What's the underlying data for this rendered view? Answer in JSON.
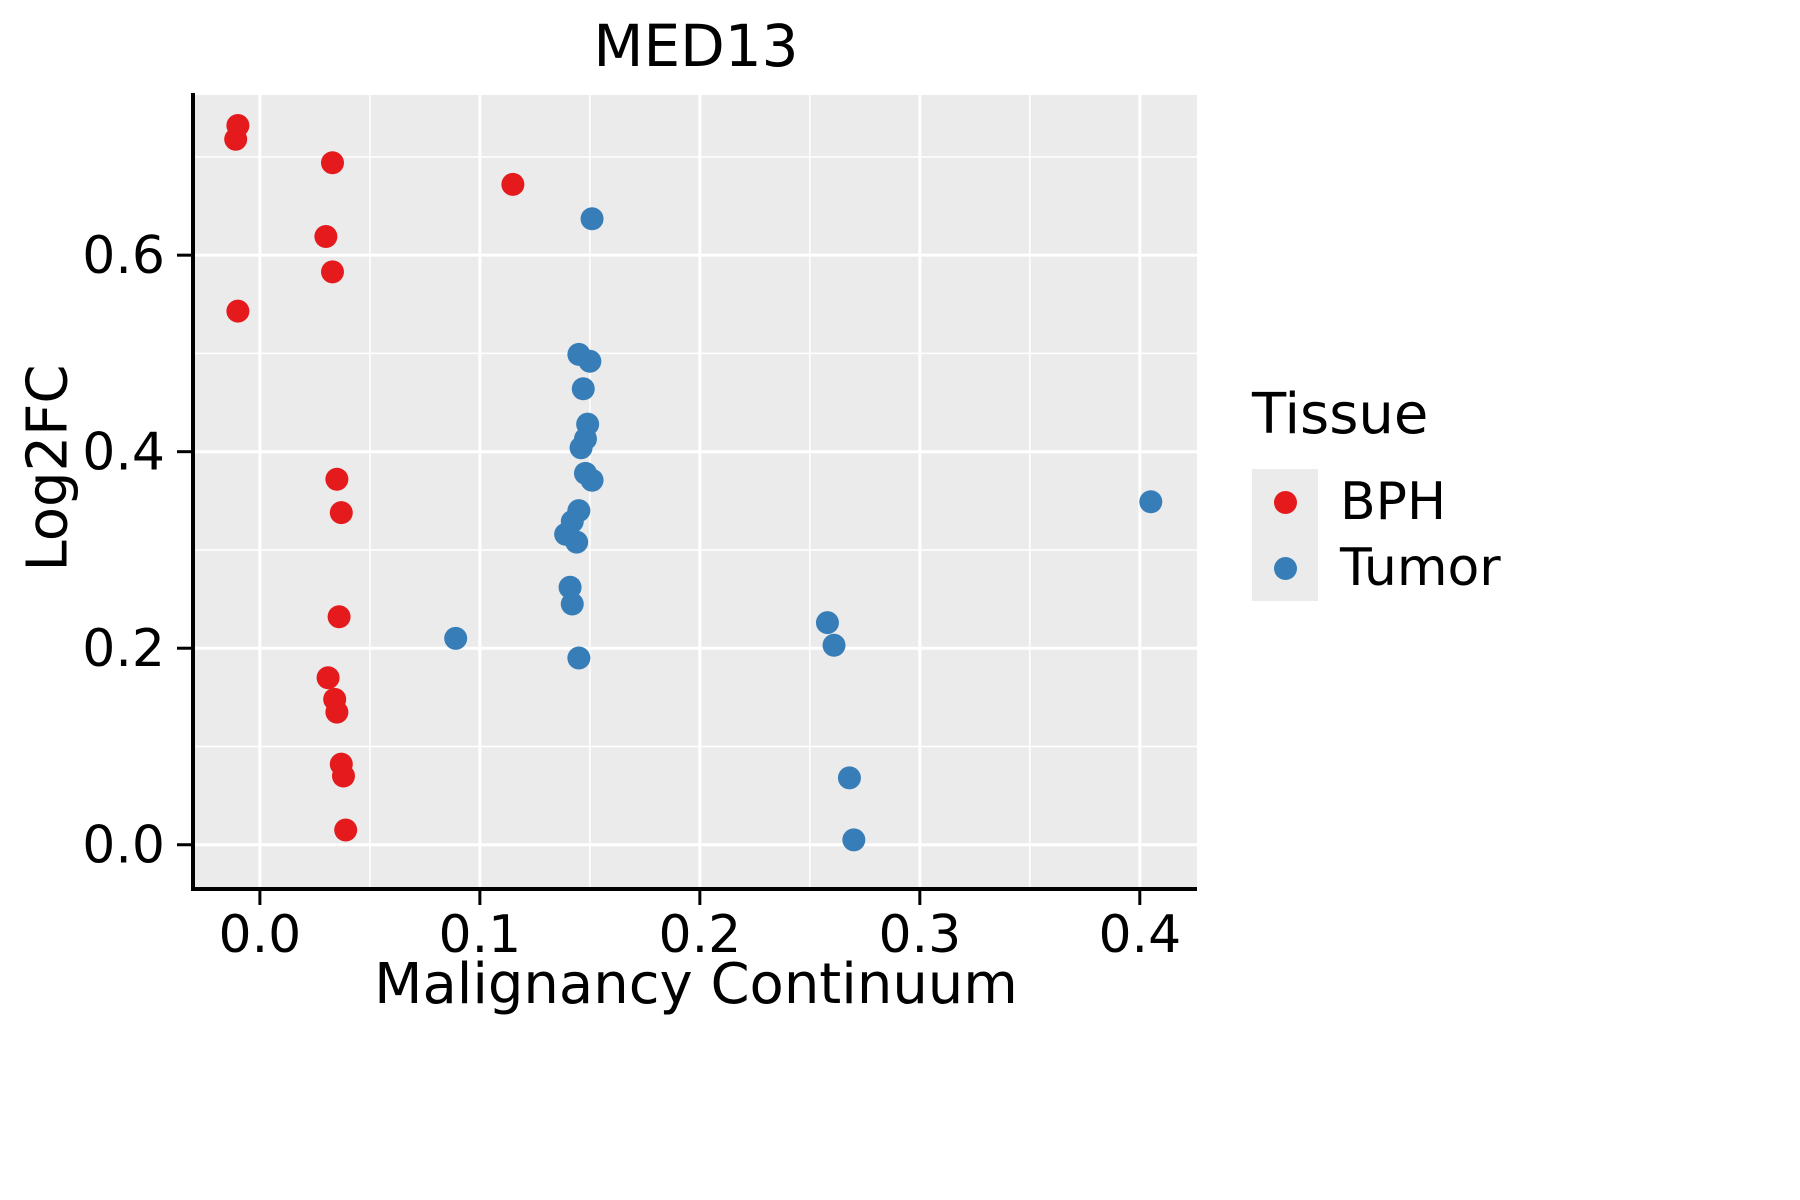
{
  "chart_data": {
    "type": "scatter",
    "title": "MED13",
    "xlabel": "Malignancy Continuum",
    "ylabel": "Log2FC",
    "legend_title": "Tissue",
    "legend_position": "right",
    "panel_background": "#EBEBEB",
    "grid_color": "#FFFFFF",
    "axis_color": "#000000",
    "grid": "on",
    "xlim": [
      -0.0295,
      0.426
    ],
    "ylim": [
      -0.043,
      0.763
    ],
    "x_ticks": {
      "values": [
        0.0,
        0.1,
        0.2,
        0.3,
        0.4
      ],
      "labels": [
        "0.0",
        "0.1",
        "0.2",
        "0.3",
        "0.4"
      ],
      "minor": [
        0.05,
        0.15,
        0.25,
        0.35
      ]
    },
    "y_ticks": {
      "values": [
        0.0,
        0.2,
        0.4,
        0.6
      ],
      "labels": [
        "0.0",
        "0.2",
        "0.4",
        "0.6"
      ],
      "minor": [
        0.1,
        0.3,
        0.5,
        0.7
      ]
    },
    "series": [
      {
        "name": "BPH",
        "color": "#E41A1C",
        "points": [
          [
            -0.01,
            0.732
          ],
          [
            -0.011,
            0.718
          ],
          [
            0.033,
            0.694
          ],
          [
            0.03,
            0.619
          ],
          [
            0.033,
            0.583
          ],
          [
            -0.01,
            0.543
          ],
          [
            0.115,
            0.672
          ],
          [
            0.035,
            0.372
          ],
          [
            0.037,
            0.338
          ],
          [
            0.036,
            0.232
          ],
          [
            0.031,
            0.17
          ],
          [
            0.034,
            0.148
          ],
          [
            0.035,
            0.135
          ],
          [
            0.037,
            0.082
          ],
          [
            0.038,
            0.07
          ],
          [
            0.039,
            0.015
          ]
        ]
      },
      {
        "name": "Tumor",
        "color": "#377EB8",
        "points": [
          [
            0.151,
            0.637
          ],
          [
            0.145,
            0.499
          ],
          [
            0.15,
            0.492
          ],
          [
            0.147,
            0.464
          ],
          [
            0.149,
            0.428
          ],
          [
            0.148,
            0.413
          ],
          [
            0.146,
            0.404
          ],
          [
            0.148,
            0.378
          ],
          [
            0.151,
            0.371
          ],
          [
            0.145,
            0.34
          ],
          [
            0.142,
            0.329
          ],
          [
            0.139,
            0.316
          ],
          [
            0.144,
            0.308
          ],
          [
            0.141,
            0.262
          ],
          [
            0.142,
            0.245
          ],
          [
            0.145,
            0.19
          ],
          [
            0.089,
            0.21
          ],
          [
            0.258,
            0.226
          ],
          [
            0.261,
            0.203
          ],
          [
            0.268,
            0.068
          ],
          [
            0.27,
            0.005
          ],
          [
            0.405,
            0.349
          ]
        ]
      }
    ]
  }
}
